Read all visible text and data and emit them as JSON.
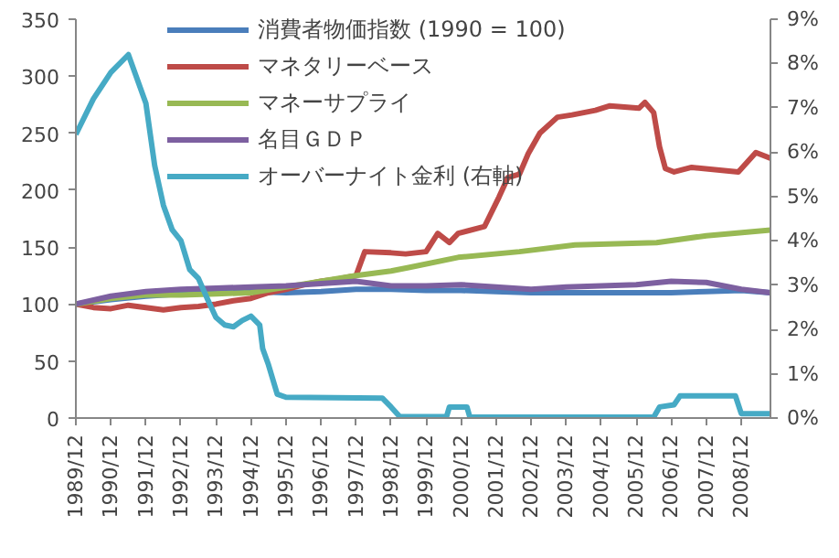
{
  "chart_data": {
    "type": "line",
    "legend": "top left",
    "grid": false,
    "xlim": [
      "1989-12",
      "2009-10"
    ],
    "xticks": [
      {
        "value": "1989-12",
        "label": "1989/12"
      },
      {
        "value": "1990-12",
        "label": "1990/12"
      },
      {
        "value": "1991-12",
        "label": "1991/12"
      },
      {
        "value": "1992-12",
        "label": "1992/12"
      },
      {
        "value": "1993-12",
        "label": "1993/12"
      },
      {
        "value": "1994-12",
        "label": "1994/12"
      },
      {
        "value": "1995-12",
        "label": "1995/12"
      },
      {
        "value": "1996-12",
        "label": "1996/12"
      },
      {
        "value": "1997-12",
        "label": "1997/12"
      },
      {
        "value": "1998-12",
        "label": "1998/12"
      },
      {
        "value": "1999-12",
        "label": "1999/12"
      },
      {
        "value": "2000-12",
        "label": "2000/12"
      },
      {
        "value": "2001-12",
        "label": "2001/12"
      },
      {
        "value": "2002-12",
        "label": "2002/12"
      },
      {
        "value": "2003-12",
        "label": "2003/12"
      },
      {
        "value": "2004-12",
        "label": "2004/12"
      },
      {
        "value": "2005-12",
        "label": "2005/12"
      },
      {
        "value": "2006-12",
        "label": "2006/12"
      },
      {
        "value": "2007-12",
        "label": "2007/12"
      },
      {
        "value": "2008-12",
        "label": "2008/12"
      }
    ],
    "ylim": [
      0,
      350
    ],
    "yticks": [
      0,
      50,
      100,
      150,
      200,
      250,
      300,
      350
    ],
    "y2lim": [
      0,
      9
    ],
    "y2ticks": [
      {
        "value": 0,
        "label": "0%"
      },
      {
        "value": 1,
        "label": "1%"
      },
      {
        "value": 2,
        "label": "2%"
      },
      {
        "value": 3,
        "label": "3%"
      },
      {
        "value": 4,
        "label": "4%"
      },
      {
        "value": 5,
        "label": "5%"
      },
      {
        "value": 6,
        "label": "6%"
      },
      {
        "value": 7,
        "label": "7%"
      },
      {
        "value": 8,
        "label": "8%"
      },
      {
        "value": 9,
        "label": "9%"
      }
    ],
    "series": [
      {
        "name": "消費者物価指数 (1990 = 100)",
        "color": "#4a7ebb",
        "x": [
          "1989-12",
          "1990-12",
          "1991-12",
          "1992-12",
          "1993-12",
          "1994-12",
          "1995-12",
          "1996-12",
          "1997-12",
          "1998-12",
          "1999-12",
          "2000-12",
          "2001-12",
          "2002-12",
          "2003-12",
          "2004-12",
          "2005-12",
          "2006-12",
          "2007-12",
          "2008-12",
          "2009-10"
        ],
        "values": [
          100,
          104,
          107,
          109,
          110,
          111,
          110,
          111,
          113,
          113,
          112,
          112,
          111,
          110,
          110,
          110,
          110,
          110,
          111,
          112,
          110
        ]
      },
      {
        "name": "マネタリーベース",
        "color": "#be4b48",
        "x": [
          "1989-12",
          "1990-06",
          "1990-12",
          "1991-06",
          "1991-12",
          "1992-06",
          "1992-12",
          "1993-06",
          "1993-12",
          "1994-06",
          "1994-12",
          "1995-06",
          "1995-12",
          "1996-06",
          "1996-12",
          "1997-06",
          "1997-12",
          "1998-03",
          "1998-12",
          "1999-05",
          "1999-12",
          "2000-04",
          "2000-08",
          "2000-11",
          "2001-08",
          "2002-01",
          "2002-04",
          "2002-08",
          "2002-11",
          "2003-03",
          "2003-09",
          "2004-02",
          "2004-10",
          "2005-03",
          "2006-01",
          "2006-03",
          "2006-06",
          "2006-08",
          "2006-10",
          "2007-01",
          "2007-07",
          "2008-11",
          "2009-05",
          "2009-10"
        ],
        "values": [
          100,
          97,
          96,
          99,
          97,
          95,
          97,
          98,
          100,
          103,
          105,
          110,
          113,
          117,
          120,
          122,
          125,
          146,
          145,
          144,
          146,
          162,
          154,
          162,
          168,
          194,
          211,
          214,
          232,
          250,
          264,
          266,
          270,
          274,
          272,
          277,
          268,
          238,
          219,
          216,
          220,
          216,
          233,
          228
        ]
      },
      {
        "name": "マネーサプライ",
        "color": "#98b954",
        "x": [
          "1989-12",
          "1990-12",
          "1991-12",
          "1992-12",
          "1993-12",
          "1994-12",
          "1995-12",
          "1996-12",
          "1997-12",
          "1998-12",
          "1999-06",
          "2000-11",
          "2002-08",
          "2004-03",
          "2006-07",
          "2007-12",
          "2009-10"
        ],
        "values": [
          100,
          105,
          108,
          108,
          109,
          110,
          115,
          120,
          125,
          129,
          132,
          141,
          146,
          152,
          154,
          160,
          165
        ]
      },
      {
        "name": "名目ＧＤＰ",
        "color": "#7d60a0",
        "x": [
          "1989-12",
          "1990-12",
          "1991-12",
          "1992-12",
          "1993-12",
          "1994-12",
          "1995-12",
          "1996-12",
          "1997-12",
          "1998-12",
          "1999-12",
          "2000-12",
          "2001-12",
          "2002-12",
          "2003-12",
          "2004-12",
          "2005-12",
          "2006-12",
          "2007-12",
          "2008-12",
          "2009-10"
        ],
        "values": [
          100,
          107,
          111,
          113,
          114,
          115,
          116,
          118,
          120,
          116,
          116,
          117,
          115,
          113,
          115,
          116,
          117,
          120,
          119,
          113,
          110
        ]
      },
      {
        "name": "オーバーナイト金利 (右軸)",
        "color": "#46aac5",
        "axis": "y2",
        "x": [
          "1989-12",
          "1990-06",
          "1990-12",
          "1991-06",
          "1991-12",
          "1992-03",
          "1992-06",
          "1992-09",
          "1992-12",
          "1993-03",
          "1993-06",
          "1993-09",
          "1993-12",
          "1994-03",
          "1994-06",
          "1994-09",
          "1994-12",
          "1995-03",
          "1995-04",
          "1995-06",
          "1995-09",
          "1995-12",
          "1998-09",
          "1998-12",
          "1999-03",
          "2000-07",
          "2000-08",
          "2001-02",
          "2001-03",
          "2006-06",
          "2006-08",
          "2007-01",
          "2007-03",
          "2008-10",
          "2008-12",
          "2009-10"
        ],
        "values": [
          6.4,
          7.2,
          7.8,
          8.2,
          7.1,
          5.7,
          4.8,
          4.25,
          4.0,
          3.35,
          3.15,
          2.7,
          2.27,
          2.1,
          2.06,
          2.2,
          2.3,
          2.1,
          1.57,
          1.2,
          0.54,
          0.47,
          0.45,
          0.25,
          0.03,
          0.03,
          0.25,
          0.25,
          0.02,
          0.02,
          0.25,
          0.3,
          0.5,
          0.5,
          0.1,
          0.1
        ]
      }
    ]
  }
}
